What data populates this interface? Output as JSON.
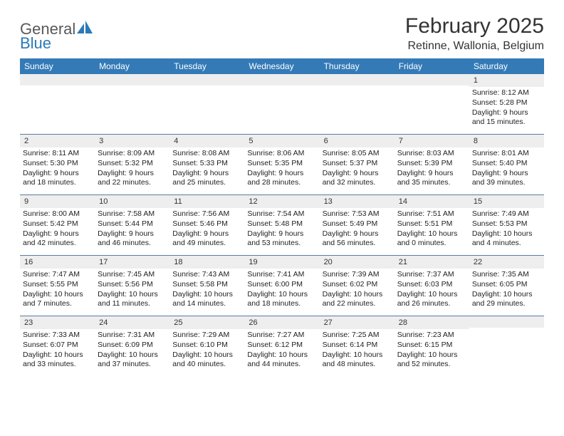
{
  "brand": {
    "word1": "General",
    "word2": "Blue"
  },
  "title": "February 2025",
  "location": "Retinne, Wallonia, Belgium",
  "colors": {
    "header_bg": "#337ab7",
    "header_text": "#ffffff",
    "daynum_bg": "#eeeeee",
    "rule": "#5a7ca3",
    "brand_gray": "#58595b",
    "brand_blue": "#2a7ab9"
  },
  "day_names": [
    "Sunday",
    "Monday",
    "Tuesday",
    "Wednesday",
    "Thursday",
    "Friday",
    "Saturday"
  ],
  "weeks": [
    [
      {
        "n": "",
        "lines": [
          "",
          "",
          "",
          ""
        ]
      },
      {
        "n": "",
        "lines": [
          "",
          "",
          "",
          ""
        ]
      },
      {
        "n": "",
        "lines": [
          "",
          "",
          "",
          ""
        ]
      },
      {
        "n": "",
        "lines": [
          "",
          "",
          "",
          ""
        ]
      },
      {
        "n": "",
        "lines": [
          "",
          "",
          "",
          ""
        ]
      },
      {
        "n": "",
        "lines": [
          "",
          "",
          "",
          ""
        ]
      },
      {
        "n": "1",
        "lines": [
          "Sunrise: 8:12 AM",
          "Sunset: 5:28 PM",
          "Daylight: 9 hours",
          "and 15 minutes."
        ]
      }
    ],
    [
      {
        "n": "2",
        "lines": [
          "Sunrise: 8:11 AM",
          "Sunset: 5:30 PM",
          "Daylight: 9 hours",
          "and 18 minutes."
        ]
      },
      {
        "n": "3",
        "lines": [
          "Sunrise: 8:09 AM",
          "Sunset: 5:32 PM",
          "Daylight: 9 hours",
          "and 22 minutes."
        ]
      },
      {
        "n": "4",
        "lines": [
          "Sunrise: 8:08 AM",
          "Sunset: 5:33 PM",
          "Daylight: 9 hours",
          "and 25 minutes."
        ]
      },
      {
        "n": "5",
        "lines": [
          "Sunrise: 8:06 AM",
          "Sunset: 5:35 PM",
          "Daylight: 9 hours",
          "and 28 minutes."
        ]
      },
      {
        "n": "6",
        "lines": [
          "Sunrise: 8:05 AM",
          "Sunset: 5:37 PM",
          "Daylight: 9 hours",
          "and 32 minutes."
        ]
      },
      {
        "n": "7",
        "lines": [
          "Sunrise: 8:03 AM",
          "Sunset: 5:39 PM",
          "Daylight: 9 hours",
          "and 35 minutes."
        ]
      },
      {
        "n": "8",
        "lines": [
          "Sunrise: 8:01 AM",
          "Sunset: 5:40 PM",
          "Daylight: 9 hours",
          "and 39 minutes."
        ]
      }
    ],
    [
      {
        "n": "9",
        "lines": [
          "Sunrise: 8:00 AM",
          "Sunset: 5:42 PM",
          "Daylight: 9 hours",
          "and 42 minutes."
        ]
      },
      {
        "n": "10",
        "lines": [
          "Sunrise: 7:58 AM",
          "Sunset: 5:44 PM",
          "Daylight: 9 hours",
          "and 46 minutes."
        ]
      },
      {
        "n": "11",
        "lines": [
          "Sunrise: 7:56 AM",
          "Sunset: 5:46 PM",
          "Daylight: 9 hours",
          "and 49 minutes."
        ]
      },
      {
        "n": "12",
        "lines": [
          "Sunrise: 7:54 AM",
          "Sunset: 5:48 PM",
          "Daylight: 9 hours",
          "and 53 minutes."
        ]
      },
      {
        "n": "13",
        "lines": [
          "Sunrise: 7:53 AM",
          "Sunset: 5:49 PM",
          "Daylight: 9 hours",
          "and 56 minutes."
        ]
      },
      {
        "n": "14",
        "lines": [
          "Sunrise: 7:51 AM",
          "Sunset: 5:51 PM",
          "Daylight: 10 hours",
          "and 0 minutes."
        ]
      },
      {
        "n": "15",
        "lines": [
          "Sunrise: 7:49 AM",
          "Sunset: 5:53 PM",
          "Daylight: 10 hours",
          "and 4 minutes."
        ]
      }
    ],
    [
      {
        "n": "16",
        "lines": [
          "Sunrise: 7:47 AM",
          "Sunset: 5:55 PM",
          "Daylight: 10 hours",
          "and 7 minutes."
        ]
      },
      {
        "n": "17",
        "lines": [
          "Sunrise: 7:45 AM",
          "Sunset: 5:56 PM",
          "Daylight: 10 hours",
          "and 11 minutes."
        ]
      },
      {
        "n": "18",
        "lines": [
          "Sunrise: 7:43 AM",
          "Sunset: 5:58 PM",
          "Daylight: 10 hours",
          "and 14 minutes."
        ]
      },
      {
        "n": "19",
        "lines": [
          "Sunrise: 7:41 AM",
          "Sunset: 6:00 PM",
          "Daylight: 10 hours",
          "and 18 minutes."
        ]
      },
      {
        "n": "20",
        "lines": [
          "Sunrise: 7:39 AM",
          "Sunset: 6:02 PM",
          "Daylight: 10 hours",
          "and 22 minutes."
        ]
      },
      {
        "n": "21",
        "lines": [
          "Sunrise: 7:37 AM",
          "Sunset: 6:03 PM",
          "Daylight: 10 hours",
          "and 26 minutes."
        ]
      },
      {
        "n": "22",
        "lines": [
          "Sunrise: 7:35 AM",
          "Sunset: 6:05 PM",
          "Daylight: 10 hours",
          "and 29 minutes."
        ]
      }
    ],
    [
      {
        "n": "23",
        "lines": [
          "Sunrise: 7:33 AM",
          "Sunset: 6:07 PM",
          "Daylight: 10 hours",
          "and 33 minutes."
        ]
      },
      {
        "n": "24",
        "lines": [
          "Sunrise: 7:31 AM",
          "Sunset: 6:09 PM",
          "Daylight: 10 hours",
          "and 37 minutes."
        ]
      },
      {
        "n": "25",
        "lines": [
          "Sunrise: 7:29 AM",
          "Sunset: 6:10 PM",
          "Daylight: 10 hours",
          "and 40 minutes."
        ]
      },
      {
        "n": "26",
        "lines": [
          "Sunrise: 7:27 AM",
          "Sunset: 6:12 PM",
          "Daylight: 10 hours",
          "and 44 minutes."
        ]
      },
      {
        "n": "27",
        "lines": [
          "Sunrise: 7:25 AM",
          "Sunset: 6:14 PM",
          "Daylight: 10 hours",
          "and 48 minutes."
        ]
      },
      {
        "n": "28",
        "lines": [
          "Sunrise: 7:23 AM",
          "Sunset: 6:15 PM",
          "Daylight: 10 hours",
          "and 52 minutes."
        ]
      },
      {
        "n": "",
        "lines": [
          "",
          "",
          "",
          ""
        ]
      }
    ]
  ]
}
